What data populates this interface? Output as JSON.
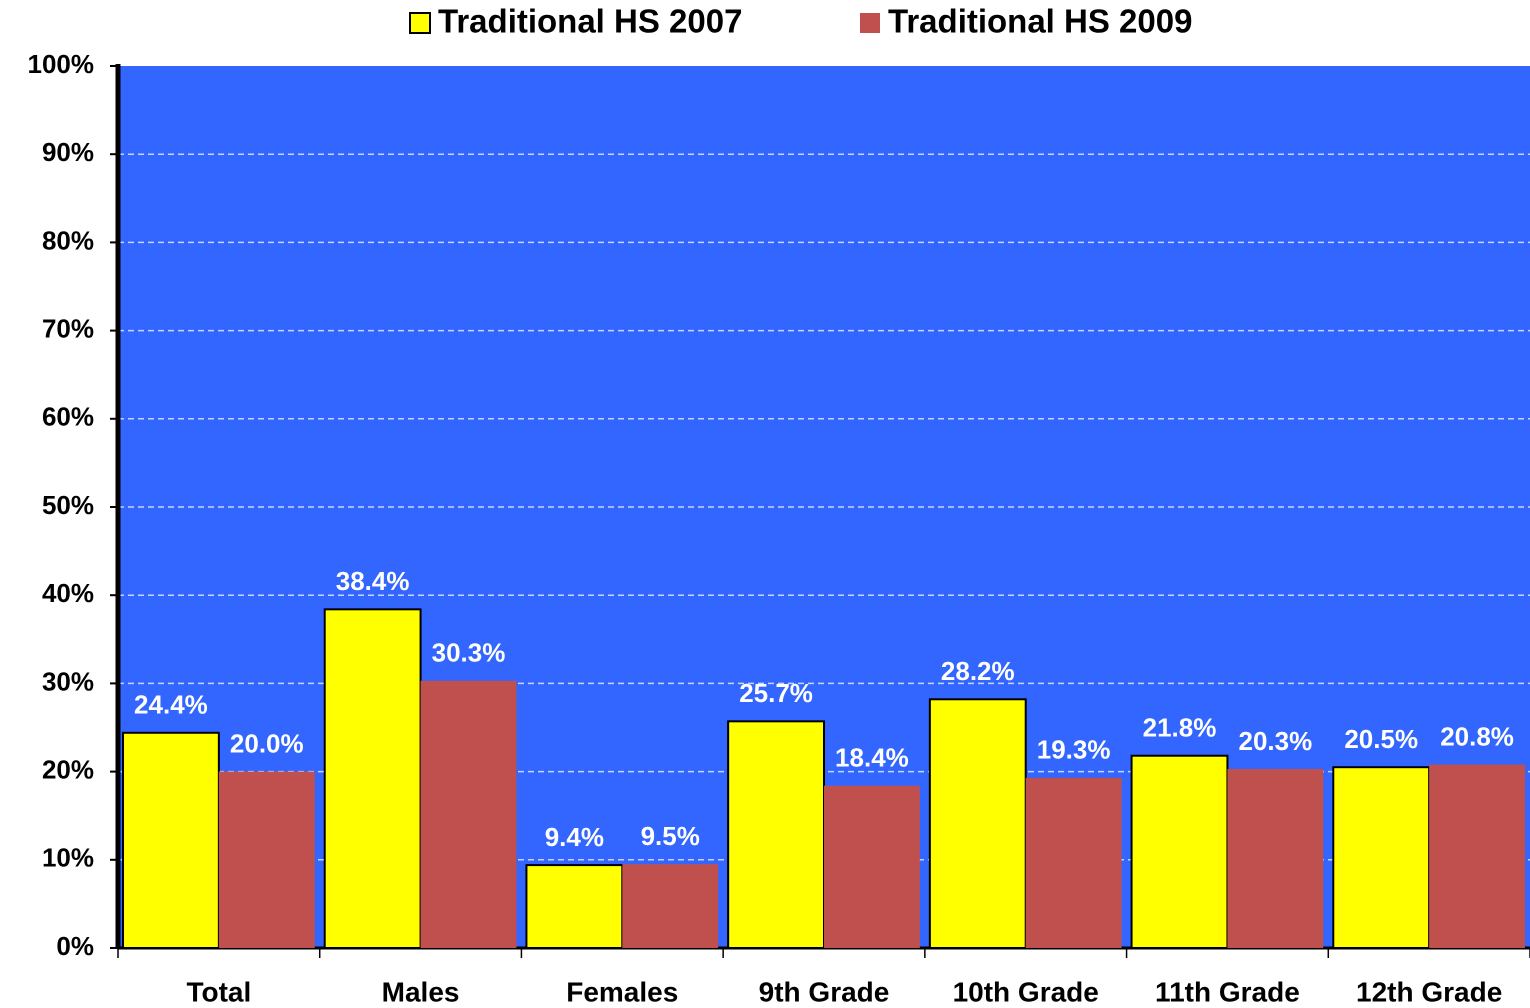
{
  "chart_data": {
    "type": "bar",
    "categories": [
      "Total",
      "Males",
      "Females",
      "9th Grade",
      "10th Grade",
      "11th Grade",
      "12th Grade"
    ],
    "series": [
      {
        "name": "Traditional HS 2007",
        "color": "#ffff00",
        "values": [
          24.4,
          38.4,
          9.4,
          25.7,
          28.2,
          21.8,
          20.5
        ],
        "value_labels": [
          "24.4%",
          "38.4%",
          "9.4%",
          "25.7%",
          "28.2%",
          "21.8%",
          "20.5%"
        ]
      },
      {
        "name": "Traditional HS 2009",
        "color": "#c0504d",
        "values": [
          20.0,
          30.3,
          9.5,
          18.4,
          19.3,
          20.3,
          20.8
        ],
        "value_labels": [
          "20.0%",
          "30.3%",
          "9.5%",
          "18.4%",
          "19.3%",
          "20.3%",
          "20.8%"
        ]
      }
    ],
    "ylim": [
      0,
      100
    ],
    "yticks": [
      {
        "value": 0,
        "label": "0%"
      },
      {
        "value": 10,
        "label": "10%"
      },
      {
        "value": 20,
        "label": "20%"
      },
      {
        "value": 30,
        "label": "30%"
      },
      {
        "value": 40,
        "label": "40%"
      },
      {
        "value": 50,
        "label": "50%"
      },
      {
        "value": 60,
        "label": "60%"
      },
      {
        "value": 70,
        "label": "70%"
      },
      {
        "value": 80,
        "label": "80%"
      },
      {
        "value": 90,
        "label": "90%"
      },
      {
        "value": 100,
        "label": "100%"
      }
    ],
    "grid": true,
    "legend": "top",
    "plot_background": "#3366ff"
  }
}
